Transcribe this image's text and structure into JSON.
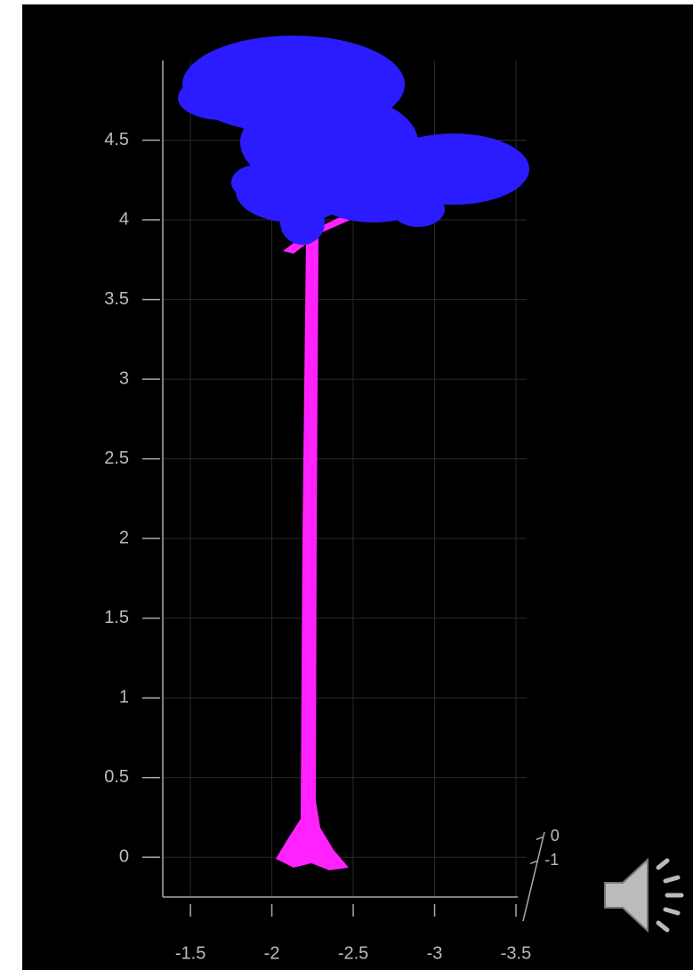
{
  "chart_data": {
    "type": "scatter3d",
    "xlim": [
      -1.33,
      -3.5
    ],
    "xticks": [
      -1.5,
      -2,
      -2.5,
      -3,
      -3.5
    ],
    "ylim": [
      -0.25,
      5
    ],
    "yticks": [
      0,
      0.5,
      1,
      1.5,
      2,
      2.5,
      3,
      3.5,
      4,
      4.5
    ],
    "zlim": [
      -3.5,
      0.2
    ],
    "zticks": [
      -1,
      0
    ],
    "grid": true
  }
}
